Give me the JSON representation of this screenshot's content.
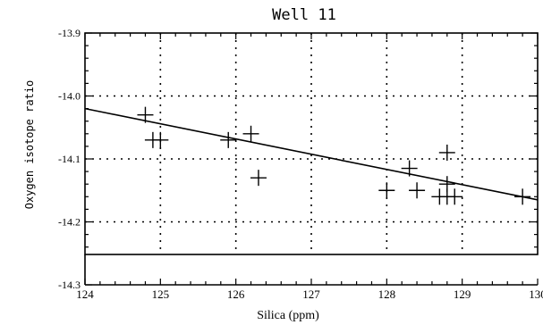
{
  "chart_data": {
    "type": "scatter",
    "title": "Well 11",
    "xlabel": "Silica (ppm)",
    "ylabel": "Oxygen isotope ratio",
    "xlim": [
      124,
      130
    ],
    "ylim": [
      -14.3,
      -13.9
    ],
    "x_ticks": [
      124,
      125,
      126,
      127,
      128,
      129,
      130
    ],
    "x_tick_labels": [
      "124",
      "125",
      "126",
      "127",
      "128",
      "129",
      "130"
    ],
    "y_ticks": [
      -13.9,
      -14.0,
      -14.1,
      -14.2,
      -14.3
    ],
    "y_tick_labels": [
      "-13.9",
      "-14.0",
      "-14.1",
      "-14.2",
      "-14.3"
    ],
    "grid": true,
    "series": [
      {
        "x": [
          124.8,
          124.9,
          125.0,
          125.9,
          126.2,
          126.3,
          128.0,
          128.3,
          128.4,
          128.7,
          128.8,
          128.8,
          128.8,
          128.9,
          129.8
        ],
        "y": [
          -14.03,
          -14.07,
          -14.07,
          -14.07,
          -14.06,
          -14.13,
          -14.15,
          -14.115,
          -14.15,
          -14.16,
          -14.09,
          -14.14,
          -14.16,
          -14.16,
          -14.16
        ],
        "marker": "plus"
      }
    ],
    "fit_line": {
      "x": [
        124,
        130
      ],
      "y": [
        -14.02,
        -14.165
      ]
    }
  }
}
